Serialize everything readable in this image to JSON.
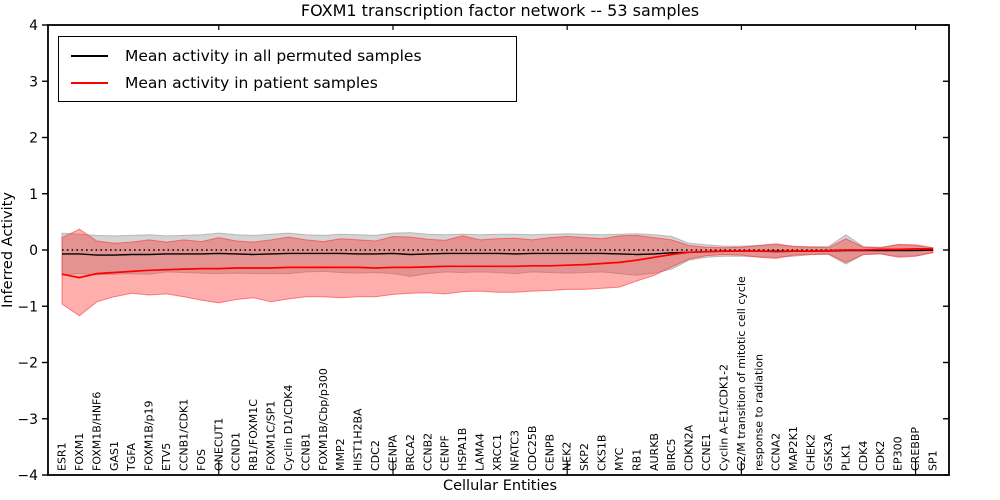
{
  "title": "FOXM1 transcription factor network -- 53 samples",
  "axes": {
    "xlabel": "Cellular Entities",
    "ylabel": "Inferred Activity"
  },
  "legend": {
    "position": "upper left",
    "items": [
      {
        "label": "Mean activity in all permuted samples",
        "color": "#000000"
      },
      {
        "label": "Mean activity in patient samples",
        "color": "#ff0000"
      }
    ]
  },
  "colors": {
    "background": "#ffffff",
    "frame": "#000000",
    "zero_line": "#000000",
    "permuted_band": "#999999",
    "patient_band": "#ff2a2a"
  },
  "chart_data": {
    "type": "line",
    "title": "FOXM1 transcription factor network -- 53 samples",
    "xlabel": "Cellular Entities",
    "ylabel": "Inferred Activity",
    "ylim": [
      -4,
      4
    ],
    "yticks": [
      4,
      3,
      2,
      1,
      0,
      -1,
      -2,
      -3,
      -4
    ],
    "xtick_positions": [
      10,
      20,
      30,
      40,
      50
    ],
    "grid": false,
    "zero_line": 0,
    "legend_position": "upper left",
    "categories": [
      "ESR1",
      "FOXM1",
      "FOXM1B/HNF6",
      "GAS1",
      "TGFA",
      "FOXM1B/p19",
      "ETV5",
      "CCNB1/CDK1",
      "FOS",
      "ONECUT1",
      "CCND1",
      "RB1/FOXM1C",
      "FOXM1C/SP1",
      "Cyclin D1/CDK4",
      "CCNB1",
      "FOXM1B/Cbp/p300",
      "MMP2",
      "HIST1H2BA",
      "CDC2",
      "CENPA",
      "BRCA2",
      "CCNB2",
      "CENPF",
      "HSPA1B",
      "LAMA4",
      "XRCC1",
      "NFATC3",
      "CDC25B",
      "CENPB",
      "NEK2",
      "SKP2",
      "CKS1B",
      "MYC",
      "RB1",
      "AURKB",
      "BIRC5",
      "CDKN2A",
      "CCNE1",
      "Cyclin A-E1/CDK1-2",
      "G2/M transition of mitotic cell cycle",
      "response to radiation",
      "CCNA2",
      "MAP2K1",
      "CHEK2",
      "GSK3A",
      "PLK1",
      "CDK4",
      "CDK2",
      "EP300",
      "CREBBP",
      "SP1"
    ],
    "series": [
      {
        "name": "Mean activity in all permuted samples",
        "color": "#000000",
        "values": [
          -0.07,
          -0.07,
          -0.09,
          -0.09,
          -0.08,
          -0.08,
          -0.07,
          -0.07,
          -0.07,
          -0.06,
          -0.07,
          -0.08,
          -0.07,
          -0.06,
          -0.06,
          -0.06,
          -0.06,
          -0.07,
          -0.07,
          -0.06,
          -0.08,
          -0.07,
          -0.06,
          -0.06,
          -0.06,
          -0.06,
          -0.07,
          -0.06,
          -0.06,
          -0.06,
          -0.06,
          -0.06,
          -0.07,
          -0.08,
          -0.07,
          -0.05,
          -0.04,
          -0.03,
          -0.02,
          -0.02,
          -0.02,
          -0.02,
          -0.02,
          -0.02,
          -0.02,
          -0.01,
          -0.01,
          -0.01,
          -0.01,
          -0.01,
          0.0
        ]
      },
      {
        "name": "Mean activity in patient samples",
        "color": "#ff0000",
        "values": [
          -0.43,
          -0.49,
          -0.42,
          -0.4,
          -0.38,
          -0.36,
          -0.35,
          -0.34,
          -0.33,
          -0.33,
          -0.32,
          -0.32,
          -0.32,
          -0.31,
          -0.31,
          -0.31,
          -0.31,
          -0.31,
          -0.32,
          -0.31,
          -0.31,
          -0.3,
          -0.29,
          -0.29,
          -0.29,
          -0.29,
          -0.29,
          -0.28,
          -0.28,
          -0.27,
          -0.26,
          -0.24,
          -0.22,
          -0.18,
          -0.13,
          -0.08,
          -0.04,
          -0.03,
          -0.02,
          -0.02,
          -0.02,
          -0.03,
          -0.02,
          -0.02,
          -0.01,
          0.0,
          0.0,
          0.01,
          0.01,
          0.02,
          0.02
        ]
      }
    ],
    "bands": [
      {
        "name": "permuted samples ± std",
        "color": "#999999",
        "fill_opacity": 0.42,
        "upper": [
          0.3,
          0.28,
          0.26,
          0.25,
          0.26,
          0.27,
          0.25,
          0.26,
          0.27,
          0.3,
          0.27,
          0.26,
          0.28,
          0.3,
          0.27,
          0.26,
          0.28,
          0.27,
          0.26,
          0.3,
          0.31,
          0.28,
          0.27,
          0.28,
          0.27,
          0.28,
          0.28,
          0.27,
          0.28,
          0.29,
          0.28,
          0.27,
          0.28,
          0.29,
          0.27,
          0.24,
          0.12,
          0.09,
          0.07,
          0.07,
          0.08,
          0.09,
          0.07,
          0.06,
          0.06,
          0.27,
          0.06,
          0.05,
          0.09,
          0.08,
          0.04
        ],
        "lower": [
          -0.44,
          -0.42,
          -0.44,
          -0.43,
          -0.42,
          -0.43,
          -0.39,
          -0.4,
          -0.41,
          -0.42,
          -0.41,
          -0.42,
          -0.42,
          -0.42,
          -0.39,
          -0.38,
          -0.4,
          -0.41,
          -0.4,
          -0.42,
          -0.47,
          -0.42,
          -0.39,
          -0.4,
          -0.39,
          -0.4,
          -0.42,
          -0.39,
          -0.4,
          -0.41,
          -0.4,
          -0.39,
          -0.42,
          -0.45,
          -0.41,
          -0.34,
          -0.18,
          -0.13,
          -0.11,
          -0.11,
          -0.12,
          -0.13,
          -0.11,
          -0.08,
          -0.08,
          -0.25,
          -0.08,
          -0.07,
          -0.11,
          -0.1,
          -0.04
        ]
      },
      {
        "name": "patient samples ± std",
        "color": "#ff2a2a",
        "fill_opacity": 0.38,
        "upper": [
          0.22,
          0.37,
          0.16,
          0.12,
          0.14,
          0.18,
          0.14,
          0.18,
          0.15,
          0.22,
          0.16,
          0.14,
          0.18,
          0.23,
          0.18,
          0.15,
          0.2,
          0.18,
          0.16,
          0.24,
          0.23,
          0.19,
          0.17,
          0.25,
          0.18,
          0.2,
          0.21,
          0.18,
          0.22,
          0.24,
          0.22,
          0.2,
          0.25,
          0.26,
          0.22,
          0.18,
          0.08,
          0.05,
          0.04,
          0.05,
          0.08,
          0.11,
          0.06,
          0.05,
          0.04,
          0.2,
          0.05,
          0.04,
          0.1,
          0.09,
          0.04
        ],
        "lower": [
          -0.96,
          -1.17,
          -0.92,
          -0.83,
          -0.77,
          -0.8,
          -0.78,
          -0.83,
          -0.89,
          -0.94,
          -0.88,
          -0.85,
          -0.92,
          -0.87,
          -0.83,
          -0.83,
          -0.85,
          -0.83,
          -0.83,
          -0.79,
          -0.77,
          -0.76,
          -0.78,
          -0.74,
          -0.73,
          -0.75,
          -0.75,
          -0.73,
          -0.72,
          -0.7,
          -0.7,
          -0.68,
          -0.66,
          -0.55,
          -0.45,
          -0.3,
          -0.16,
          -0.1,
          -0.08,
          -0.09,
          -0.13,
          -0.15,
          -0.09,
          -0.08,
          -0.07,
          -0.22,
          -0.08,
          -0.07,
          -0.13,
          -0.11,
          -0.05
        ]
      }
    ]
  }
}
